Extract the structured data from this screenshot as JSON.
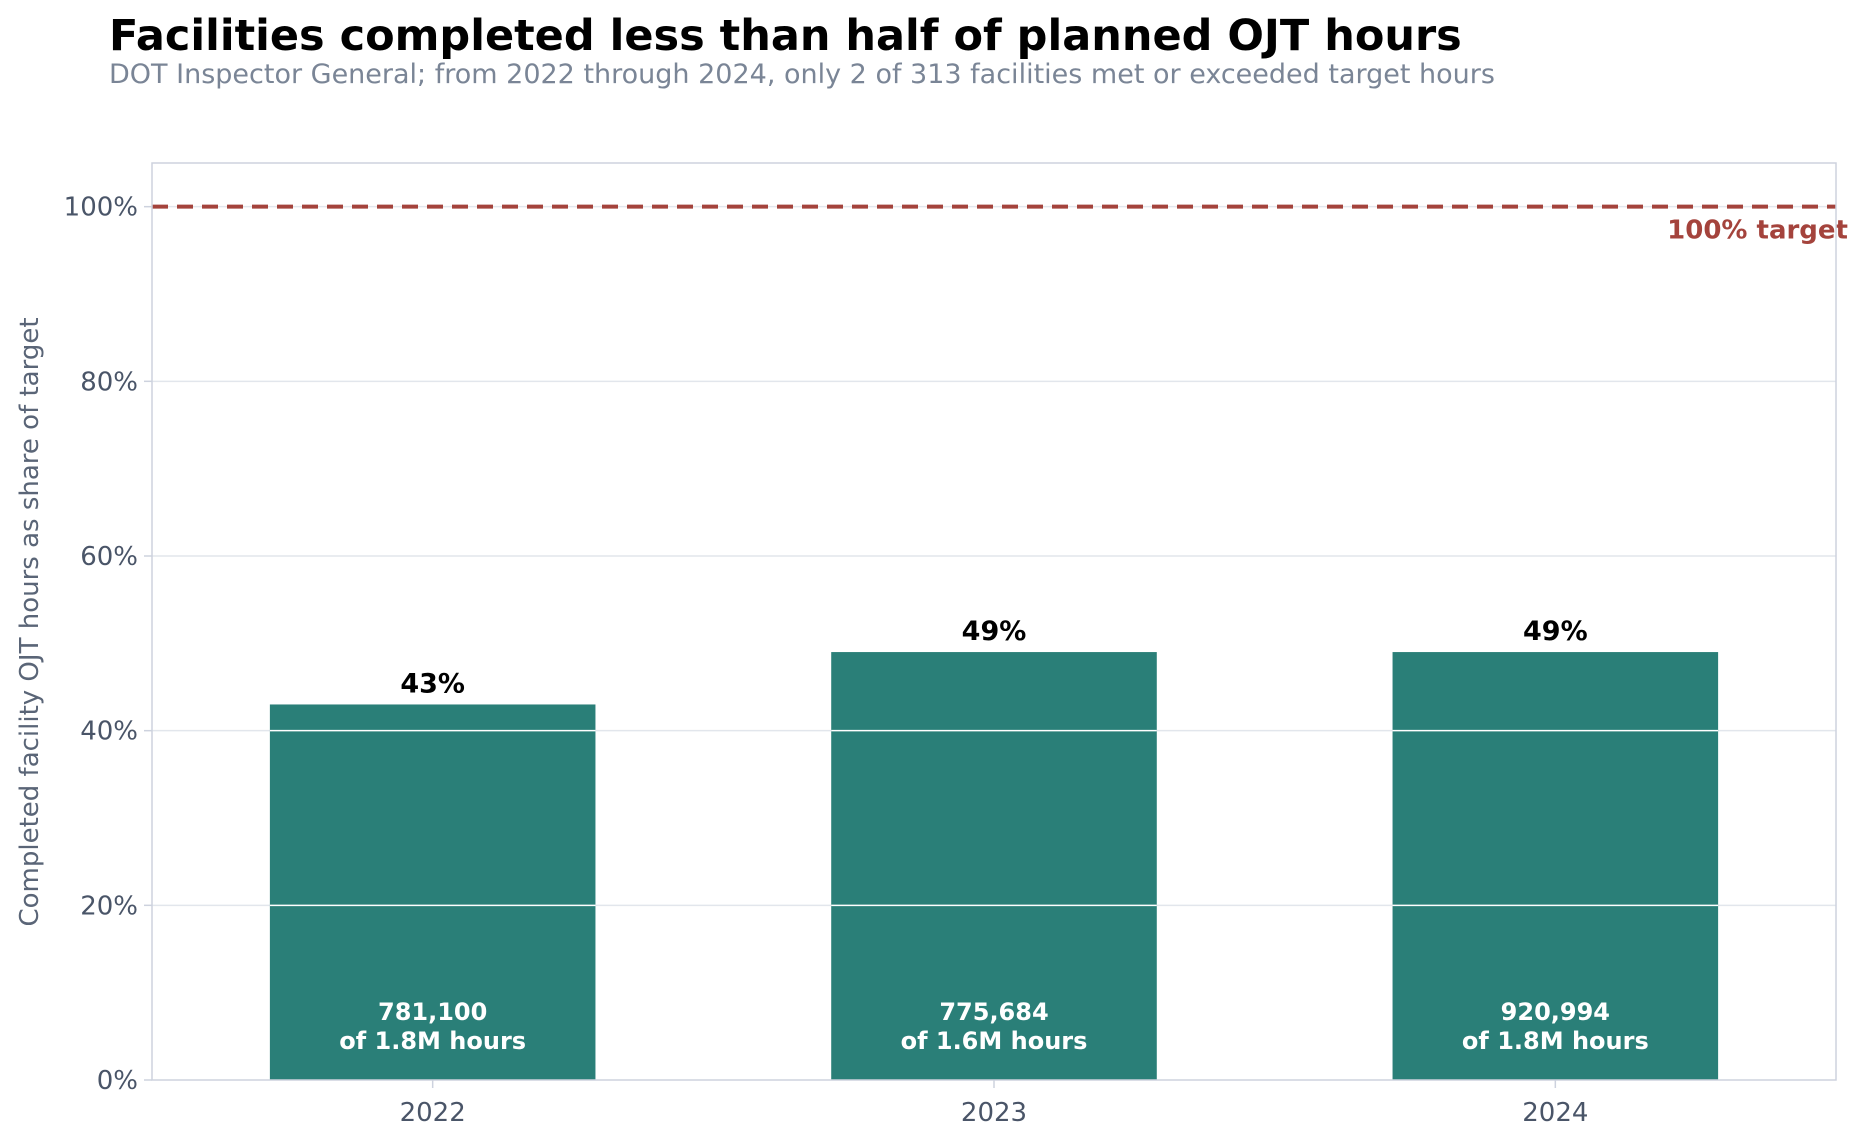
{
  "title": "Facilities completed less than half of planned OJT hours",
  "subtitle": "DOT Inspector General; from 2022 through 2024, only 2 of 313 facilities met or exceeded target hours",
  "colors": {
    "bar": "#2a7f78",
    "target": "#a4433c",
    "grid": "#e2e6ec",
    "frame": "#cdd2de"
  },
  "chart_data": {
    "type": "bar",
    "categories": [
      "2022",
      "2023",
      "2024"
    ],
    "values": [
      43,
      49,
      49
    ],
    "value_labels": [
      "43%",
      "49%",
      "49%"
    ],
    "bar_annotations": [
      [
        "781,100",
        "of 1.8M hours"
      ],
      [
        "775,684",
        "of 1.6M hours"
      ],
      [
        "920,994",
        "of 1.8M hours"
      ]
    ],
    "xlabel": "",
    "ylabel": "Completed facility OJT hours as share of target",
    "ylim": [
      0,
      105
    ],
    "yticks": [
      0,
      20,
      40,
      60,
      80,
      100
    ],
    "ytick_labels": [
      "0%",
      "20%",
      "40%",
      "60%",
      "80%",
      "100%"
    ],
    "reference_line": {
      "value": 100,
      "label": "100% target",
      "style": "dashed"
    },
    "grid": "horizontal"
  }
}
